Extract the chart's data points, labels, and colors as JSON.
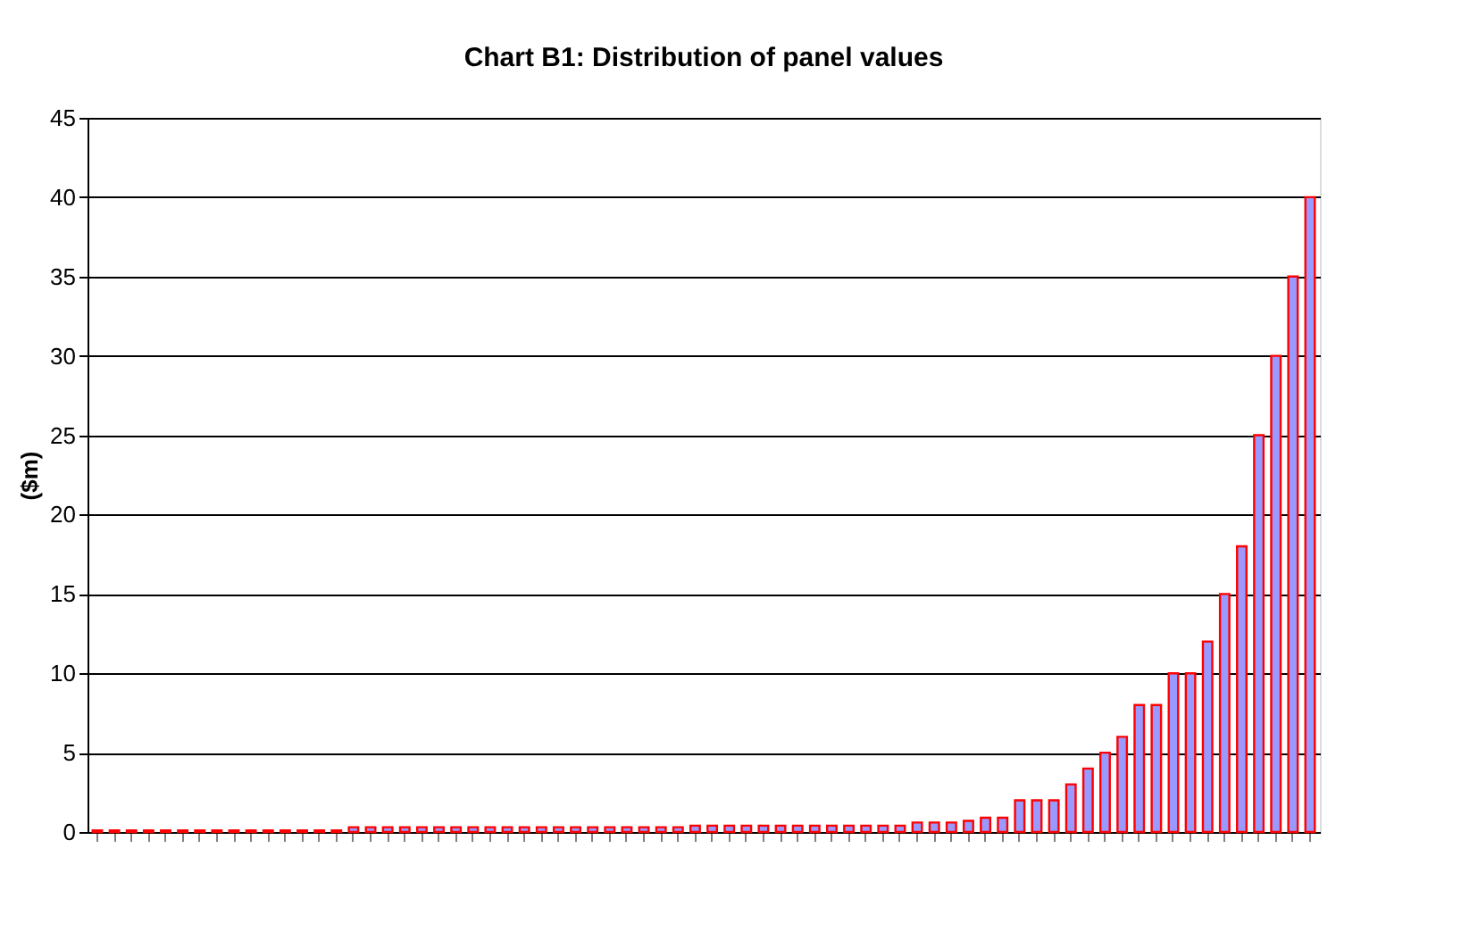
{
  "chart_data": {
    "type": "bar",
    "title": "Chart B1: Distribution of panel values",
    "ylabel": "($m)",
    "categories": [
      null,
      null,
      null,
      null,
      null,
      null,
      null,
      null,
      null,
      null,
      null,
      null,
      null,
      null,
      null,
      null,
      null,
      null,
      null,
      null,
      null,
      null,
      null,
      null,
      null,
      null,
      null,
      null,
      null,
      null,
      null,
      null,
      null,
      null,
      null,
      null,
      null,
      null,
      null,
      null,
      null,
      null,
      null,
      null,
      null,
      null,
      null,
      null,
      null,
      null,
      null,
      null,
      null,
      null,
      null,
      null,
      null,
      null,
      null,
      null,
      null,
      null,
      null,
      null,
      null,
      null,
      null,
      null,
      null,
      null,
      null,
      null
    ],
    "values": [
      0.1,
      0.1,
      0.1,
      0.1,
      0.1,
      0.1,
      0.1,
      0.1,
      0.1,
      0.1,
      0.1,
      0.1,
      0.1,
      0.1,
      0.1,
      0.3,
      0.3,
      0.3,
      0.3,
      0.3,
      0.3,
      0.3,
      0.3,
      0.3,
      0.3,
      0.3,
      0.3,
      0.3,
      0.3,
      0.3,
      0.3,
      0.3,
      0.3,
      0.3,
      0.3,
      0.4,
      0.4,
      0.4,
      0.4,
      0.4,
      0.4,
      0.4,
      0.4,
      0.4,
      0.4,
      0.4,
      0.4,
      0.4,
      0.6,
      0.6,
      0.6,
      0.7,
      0.9,
      0.9,
      2,
      2,
      2,
      3,
      4,
      5,
      6,
      8,
      8,
      10,
      10,
      12,
      15,
      18,
      25,
      30,
      35,
      40
    ],
    "color": "#9999ff",
    "ylim": [
      0,
      45
    ],
    "yticks": [
      0,
      5,
      10,
      15,
      20,
      25,
      30,
      35,
      40,
      45
    ],
    "grid": "y",
    "tick_labels": "y"
  }
}
